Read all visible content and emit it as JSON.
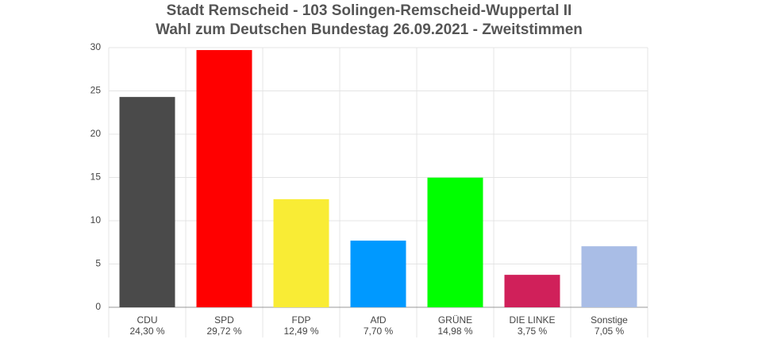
{
  "chart_data": {
    "type": "bar",
    "title": "Stadt Remscheid - 103 Solingen-Remscheid-Wuppertal II",
    "subtitle": "Wahl zum Deutschen Bundestag 26.09.2021  - Zweitstimmen",
    "categories": [
      "CDU",
      "SPD",
      "FDP",
      "AfD",
      "GRÜNE",
      "DIE LINKE",
      "Sonstige"
    ],
    "values": [
      24.3,
      29.72,
      12.49,
      7.7,
      14.98,
      3.75,
      7.05
    ],
    "value_labels": [
      "24,30 %",
      "29,72 %",
      "12,49 %",
      "7,70 %",
      "14,98 %",
      "3,75 %",
      "7,05 %"
    ],
    "colors": [
      "#4a4a4a",
      "#ff0000",
      "#f9ec35",
      "#0099ff",
      "#00ff00",
      "#d0205a",
      "#a9bde6"
    ],
    "ylim": [
      0,
      30
    ],
    "yticks": [
      0,
      5,
      10,
      15,
      20,
      25,
      30
    ],
    "grid": true
  }
}
